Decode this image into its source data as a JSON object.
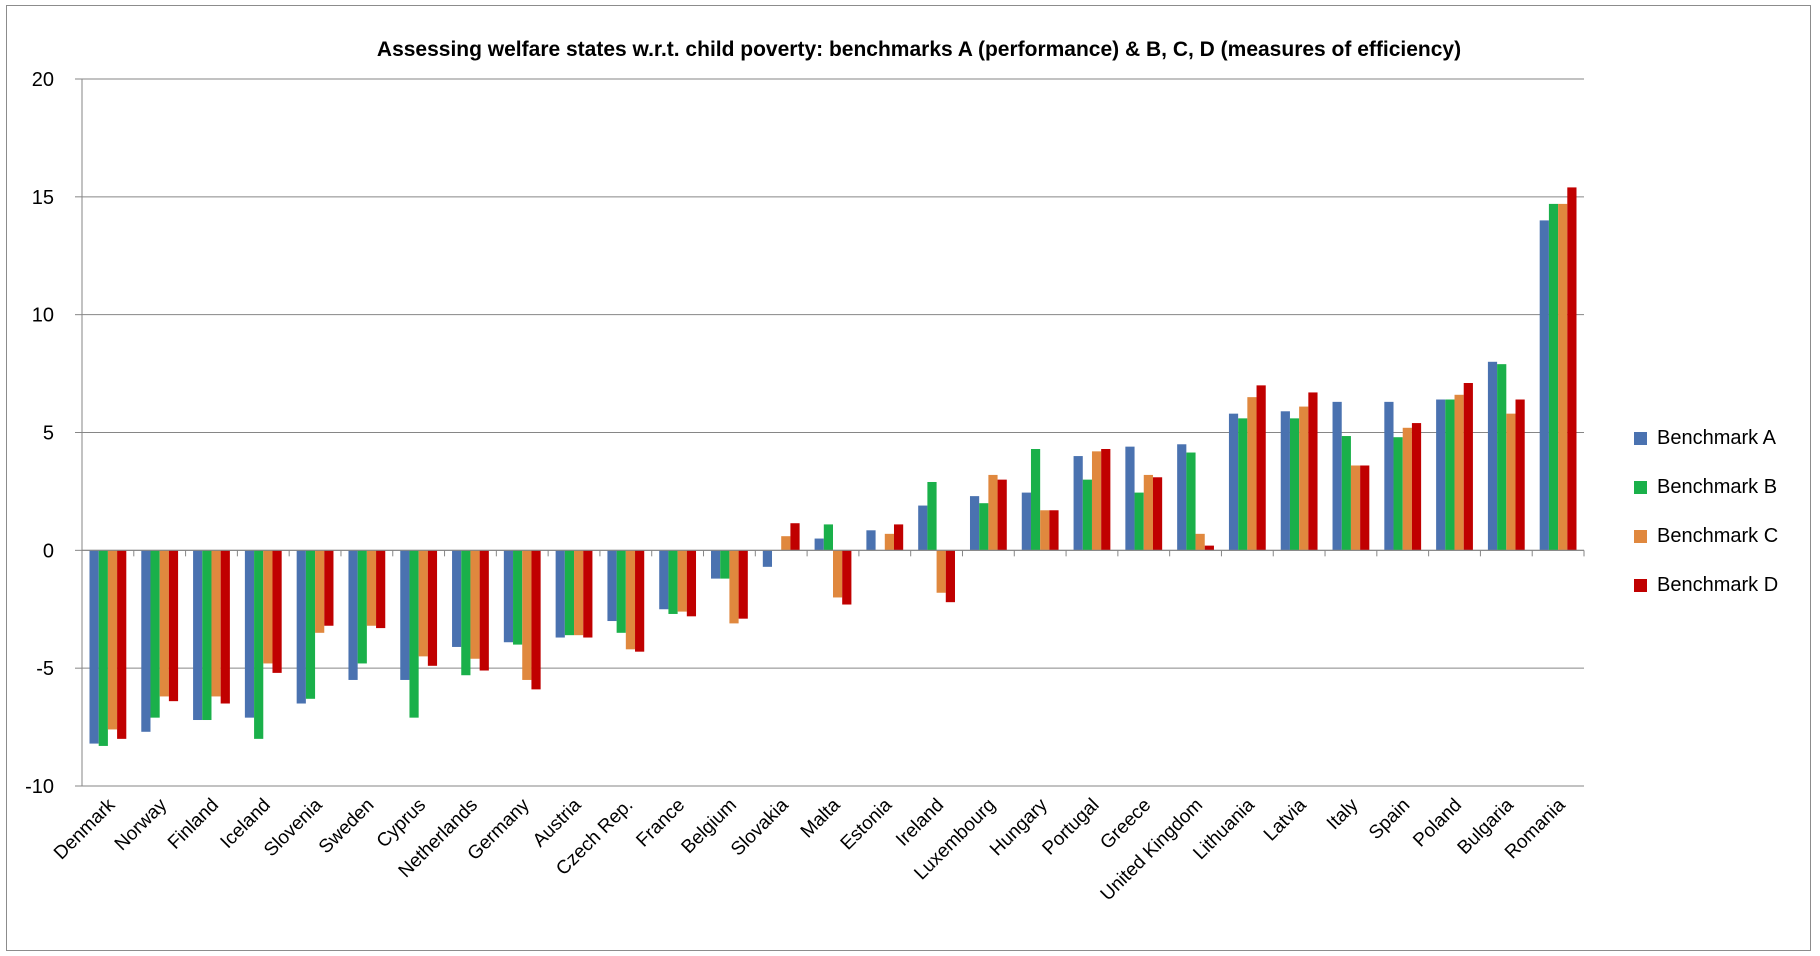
{
  "chart_data": {
    "type": "bar",
    "title": "Assessing welfare states w.r.t. child poverty: benchmarks A (performance) & B, C, D (measures of efficiency)",
    "xlabel": "",
    "ylabel": "",
    "ylim": [
      -10,
      20
    ],
    "yticks": [
      -10,
      -5,
      0,
      5,
      10,
      15,
      20
    ],
    "grid": true,
    "legend_position": "right",
    "categories": [
      "Denmark",
      "Norway",
      "Finland",
      "Iceland",
      "Slovenia",
      "Sweden",
      "Cyprus",
      "Netherlands",
      "Germany",
      "Austria",
      "Czech Rep.",
      "France",
      "Belgium",
      "Slovakia",
      "Malta",
      "Estonia",
      "Ireland",
      "Luxembourg",
      "Hungary",
      "Portugal",
      "Greece",
      "United Kingdom",
      "Lithuania",
      "Latvia",
      "Italy",
      "Spain",
      "Poland",
      "Bulgaria",
      "Romania"
    ],
    "series": [
      {
        "name": "Benchmark A",
        "color": "#4a72b0",
        "values": [
          -8.2,
          -7.7,
          -7.2,
          -7.1,
          -6.5,
          -5.5,
          -5.5,
          -4.1,
          -3.9,
          -3.7,
          -3.0,
          -2.5,
          -1.2,
          -0.7,
          0.5,
          0.85,
          1.9,
          2.3,
          2.45,
          4.0,
          4.4,
          4.5,
          5.8,
          5.9,
          6.3,
          6.3,
          6.4,
          8.0,
          14.0
        ]
      },
      {
        "name": "Benchmark B",
        "color": "#1ab04a",
        "values": [
          -8.3,
          -7.1,
          -7.2,
          -8.0,
          -6.3,
          -4.8,
          -7.1,
          -5.3,
          -4.0,
          -3.6,
          -3.5,
          -2.7,
          -1.2,
          0.0,
          1.1,
          0.0,
          2.9,
          2.0,
          4.3,
          3.0,
          2.45,
          4.15,
          5.6,
          5.6,
          4.85,
          4.8,
          6.4,
          7.9,
          14.7
        ]
      },
      {
        "name": "Benchmark C",
        "color": "#e0883e",
        "values": [
          -7.6,
          -6.2,
          -6.2,
          -4.8,
          -3.5,
          -3.2,
          -4.5,
          -4.6,
          -5.5,
          -3.6,
          -4.2,
          -2.6,
          -3.1,
          0.6,
          -2.0,
          0.7,
          -1.8,
          3.2,
          1.7,
          4.2,
          3.2,
          0.7,
          6.5,
          6.1,
          3.6,
          5.2,
          6.6,
          5.8,
          14.7
        ]
      },
      {
        "name": "Benchmark D",
        "color": "#c00000",
        "values": [
          -8.0,
          -6.4,
          -6.5,
          -5.2,
          -3.2,
          -3.3,
          -4.9,
          -5.1,
          -5.9,
          -3.7,
          -4.3,
          -2.8,
          -2.9,
          1.15,
          -2.3,
          1.1,
          -2.2,
          3.0,
          1.7,
          4.3,
          3.1,
          0.2,
          7.0,
          6.7,
          3.6,
          5.4,
          7.1,
          6.4,
          15.4
        ]
      }
    ]
  }
}
